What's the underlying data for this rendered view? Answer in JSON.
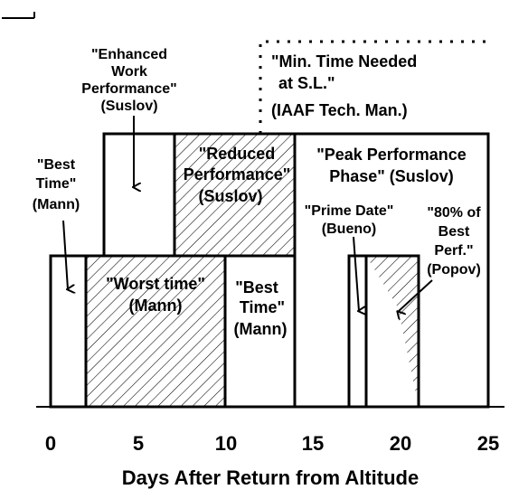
{
  "labels": {
    "enhanced": [
      "\"Enhanced",
      "Work",
      "Performance\"",
      "(Suslov)"
    ],
    "best_time_left": [
      "\"Best",
      "Time\"",
      "(Mann)"
    ],
    "min_time": [
      "\"Min. Time Needed",
      "at S.L.\"",
      "(IAAF Tech. Man.)"
    ],
    "reduced": [
      "\"Reduced",
      "Performance\"",
      "(Suslov)"
    ],
    "peak": [
      "\"Peak Performance",
      "Phase\"  (Suslov)"
    ],
    "worst": [
      "\"Worst time\"",
      "(Mann)"
    ],
    "best_time_mid": [
      "\"Best",
      "Time\"",
      "(Mann)"
    ],
    "prime": [
      "\"Prime Date\"",
      "(Bueno)"
    ],
    "eighty": [
      "\"80% of",
      "Best",
      "Perf.\"",
      "(Popov)"
    ]
  },
  "x_axis": {
    "title": "Days After Return from Altitude",
    "ticks": [
      "0",
      "5",
      "10",
      "15",
      "20",
      "25"
    ],
    "range": [
      0,
      25
    ]
  },
  "colors": {
    "line": "#000000",
    "background": "#ffffff"
  }
}
